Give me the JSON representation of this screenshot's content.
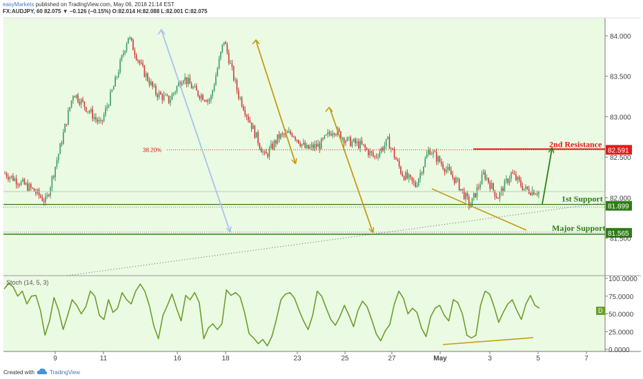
{
  "header": {
    "line1_brand": "easyMarkets",
    "line1_rest": " published on TradingView.com, May 06, 2018 21:14 EST",
    "line2": "FX:AUDJPY, 60  82.075  ▼ −0.126 (−0.15%)  O:82.014  H:82.088  L:82.001  C:82.075"
  },
  "footer": {
    "created_label": "Created with",
    "brand": "TradingView"
  },
  "colors": {
    "background": "#ebfae3",
    "bull_candle": "#3c9e66",
    "bear_candle": "#d23a3a",
    "resistance": "#e31919",
    "support": "#2e7d14",
    "oscillator": "#6a9e2a",
    "gold_arrow": "#c49a14",
    "blue_arrow": "#a9c1ec"
  },
  "chart_data": [
    {
      "type": "candlestick",
      "symbol": "FX:AUDJPY",
      "timeframe": "60",
      "ylim": [
        81.2,
        84.2
      ],
      "y_ticks": [
        "84.000",
        "83.500",
        "83.000",
        "82.500",
        "82.000",
        "81.500"
      ],
      "x_tick_labels": [
        "9",
        "11",
        "16",
        "18",
        "23",
        "25",
        "27",
        "May",
        "3",
        "5",
        "7",
        "9"
      ],
      "close_path": [
        [
          "9",
          82.3
        ],
        [
          "9",
          82.2
        ],
        [
          "9",
          82.1
        ],
        [
          "9",
          81.95
        ],
        [
          "11",
          82.6
        ],
        [
          "11",
          83.3
        ],
        [
          "11",
          83.1
        ],
        [
          "11",
          82.9
        ],
        [
          "16",
          83.4
        ],
        [
          "16",
          84.0
        ],
        [
          "16",
          83.6
        ],
        [
          "16",
          83.3
        ],
        [
          "18",
          83.2
        ],
        [
          "18",
          83.5
        ],
        [
          "18",
          83.3
        ],
        [
          "18",
          83.2
        ],
        [
          "23",
          83.95
        ],
        [
          "23",
          83.3
        ],
        [
          "23",
          82.9
        ],
        [
          "23",
          82.5
        ],
        [
          "25",
          82.75
        ],
        [
          "25",
          82.8
        ],
        [
          "25",
          82.6
        ],
        [
          "25",
          82.65
        ],
        [
          "27",
          82.85
        ],
        [
          "27",
          82.7
        ],
        [
          "27",
          82.65
        ],
        [
          "27",
          82.5
        ],
        [
          "May",
          82.7
        ],
        [
          "May",
          82.3
        ],
        [
          "May",
          82.15
        ],
        [
          "May",
          82.6
        ],
        [
          "3",
          82.4
        ],
        [
          "3",
          82.2
        ],
        [
          "3",
          81.9
        ],
        [
          "3",
          82.3
        ],
        [
          "5",
          82.0
        ],
        [
          "5",
          82.3
        ],
        [
          "5",
          82.1
        ],
        [
          "5",
          82.075
        ]
      ],
      "levels": [
        {
          "name": "2nd Resistance",
          "value": 82.591,
          "value_label": "82.591"
        },
        {
          "name": "1st Support",
          "value": 81.899,
          "value_label": "81.899"
        },
        {
          "name": "Major Support",
          "value": 81.565,
          "value_label": "81.565"
        }
      ],
      "annotations": [
        "38.20%",
        "2nd Resistance",
        "1st Support",
        "Major Support"
      ]
    },
    {
      "type": "line",
      "title": "Stoch (14, 5, 3)",
      "ylim": [
        0,
        100
      ],
      "y_ticks": [
        "100.0000",
        "75.0000",
        "50.0000",
        "25.0000",
        "0.0000"
      ],
      "last_value_label": "D",
      "values": [
        85,
        93,
        88,
        75,
        82,
        64,
        75,
        76,
        55,
        20,
        40,
        73,
        55,
        28,
        48,
        70,
        62,
        50,
        60,
        82,
        75,
        48,
        42,
        70,
        52,
        58,
        80,
        70,
        64,
        82,
        92,
        82,
        62,
        33,
        15,
        48,
        62,
        78,
        58,
        40,
        76,
        70,
        80,
        66,
        15,
        30,
        36,
        28,
        36,
        84,
        76,
        80,
        74,
        52,
        22,
        16,
        8,
        14,
        5,
        18,
        42,
        70,
        78,
        80,
        72,
        55,
        40,
        28,
        48,
        82,
        75,
        58,
        42,
        34,
        46,
        62,
        48,
        32,
        55,
        68,
        60,
        42,
        22,
        12,
        26,
        35,
        64,
        82,
        72,
        50,
        58,
        52,
        30,
        18,
        46,
        58,
        62,
        48,
        40,
        70,
        66,
        50,
        20,
        16,
        20,
        62,
        82,
        78,
        60,
        38,
        52,
        64,
        70,
        55,
        42,
        64,
        76,
        62,
        58
      ]
    }
  ]
}
